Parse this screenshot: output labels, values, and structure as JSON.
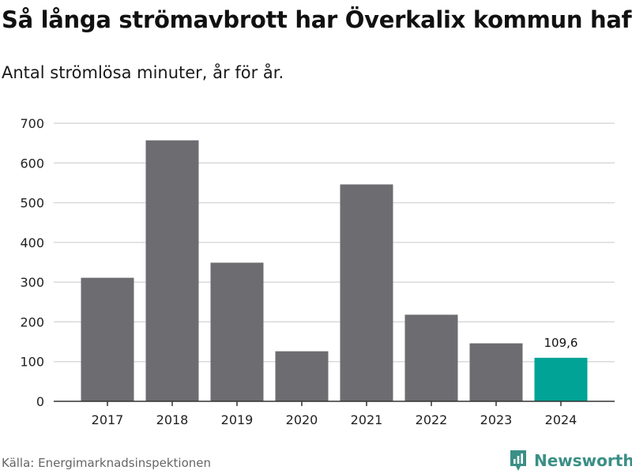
{
  "title": "Så långa strömavbrott har Överkalix kommun haft",
  "subtitle": "Antal strömlösa minuter, år för år.",
  "source": "Källa: Energimarknadsinspektionen",
  "brand": {
    "name": "Newsworthy",
    "icon": "newsworthy-logo-icon"
  },
  "colors": {
    "bar_default": "#6d6c71",
    "bar_highlight": "#00a396",
    "grid": "#d9d9d9",
    "axis": "#333333",
    "brand": "#3a8f86"
  },
  "chart_data": {
    "type": "bar",
    "title": "Så långa strömavbrott har Överkalix kommun haft",
    "subtitle": "Antal strömlösa minuter, år för år.",
    "xlabel": "",
    "ylabel": "",
    "categories": [
      "2017",
      "2018",
      "2019",
      "2020",
      "2021",
      "2022",
      "2023",
      "2024"
    ],
    "values": [
      311,
      657,
      349,
      126,
      546,
      218,
      146,
      109.6
    ],
    "highlight_index": 7,
    "data_labels": [
      {
        "index": 7,
        "text": "109,6"
      }
    ],
    "ylim": [
      0,
      700
    ],
    "yticks": [
      0,
      100,
      200,
      300,
      400,
      500,
      600,
      700
    ],
    "grid": true
  }
}
